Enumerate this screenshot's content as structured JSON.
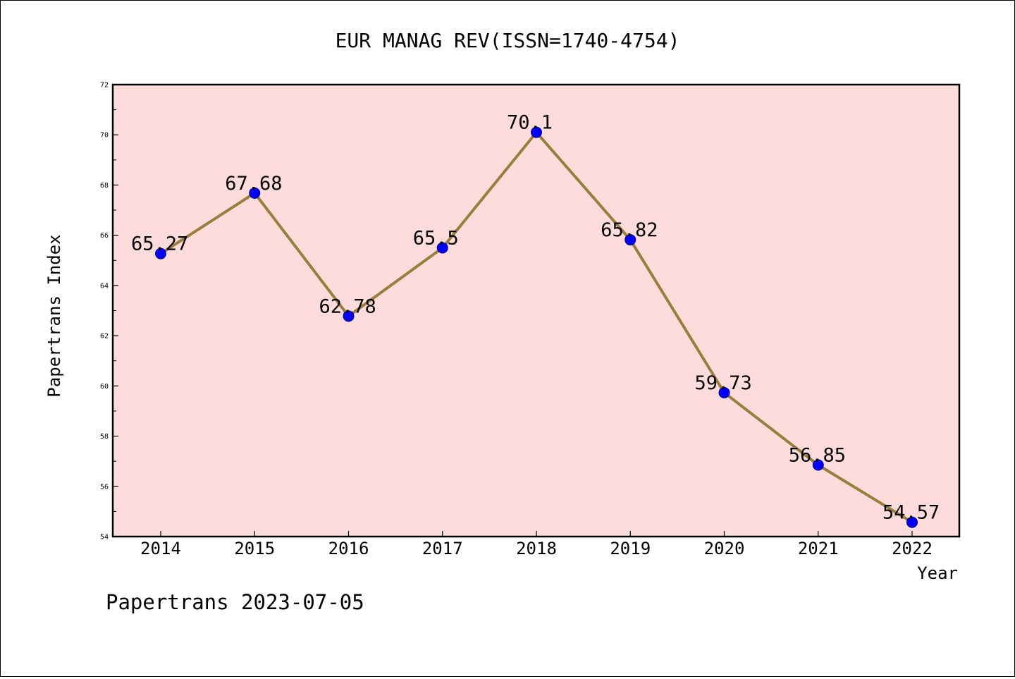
{
  "chart_data": {
    "type": "line",
    "title": "EUR MANAG REV(ISSN=1740-4754)",
    "xlabel": "Year",
    "ylabel": "Papertrans Index",
    "x": [
      "2014",
      "2015",
      "2016",
      "2017",
      "2018",
      "2019",
      "2020",
      "2021",
      "2022"
    ],
    "values": [
      65.27,
      67.68,
      62.78,
      65.5,
      70.1,
      65.82,
      59.73,
      56.85,
      54.57
    ],
    "data_labels": [
      "65.27",
      "67.68",
      "62.78",
      "65.5",
      "70.1",
      "65.82",
      "59.73",
      "56.85",
      "54.57"
    ],
    "ylim": [
      54,
      72
    ],
    "yticks": [
      "54",
      "56",
      "58",
      "60",
      "62",
      "64",
      "66",
      "68",
      "70",
      "72"
    ],
    "grid": false,
    "legend": "none",
    "colors": {
      "plot_background": "#ffdcdc",
      "line": "#9a7f3c",
      "marker": "#0000ff",
      "marker_edge": "#00008b"
    }
  },
  "footer": "Papertrans 2023-07-05"
}
